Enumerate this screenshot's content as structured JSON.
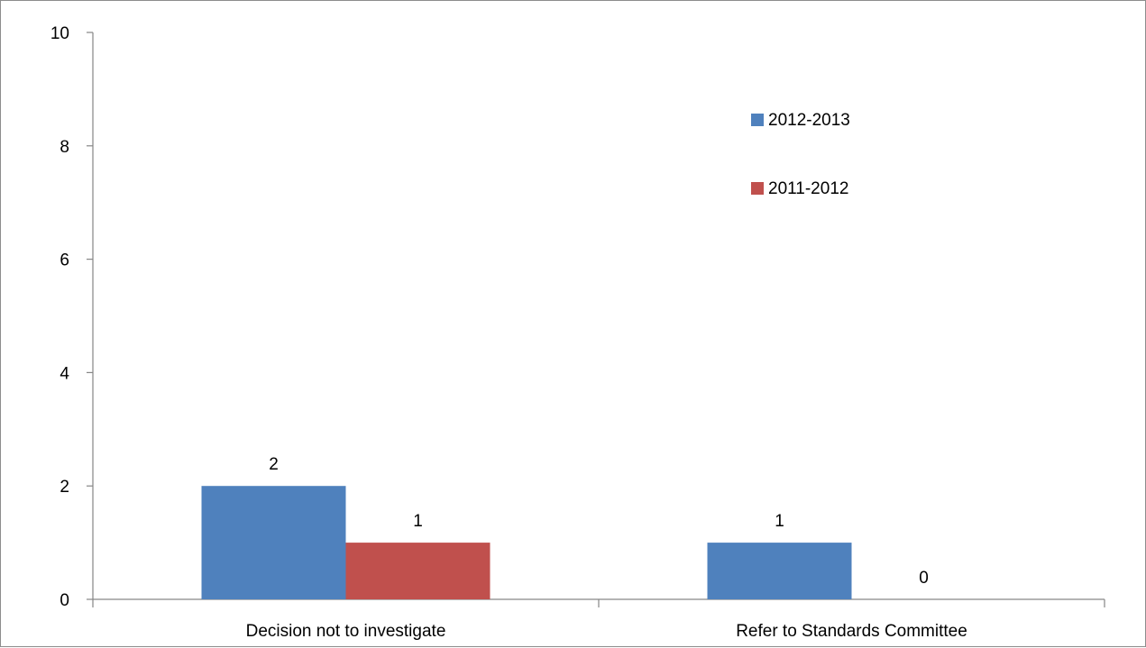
{
  "chart_data": {
    "type": "bar",
    "title": "",
    "xlabel": "",
    "ylabel": "",
    "categories": [
      "Decision not to investigate",
      "Refer to Standards Committee"
    ],
    "series": [
      {
        "name": "2012-2013",
        "color": "#4F81BD",
        "values": [
          2,
          1
        ]
      },
      {
        "name": "2011-2012",
        "color": "#C0504D",
        "values": [
          1,
          0
        ]
      }
    ],
    "ylim": [
      0,
      10
    ],
    "yticks": [
      "0",
      "2",
      "4",
      "6",
      "8",
      "10"
    ],
    "data_labels": [
      [
        "2",
        "1"
      ],
      [
        "1",
        "0"
      ]
    ],
    "grid": false,
    "legend_position": "top-right"
  }
}
